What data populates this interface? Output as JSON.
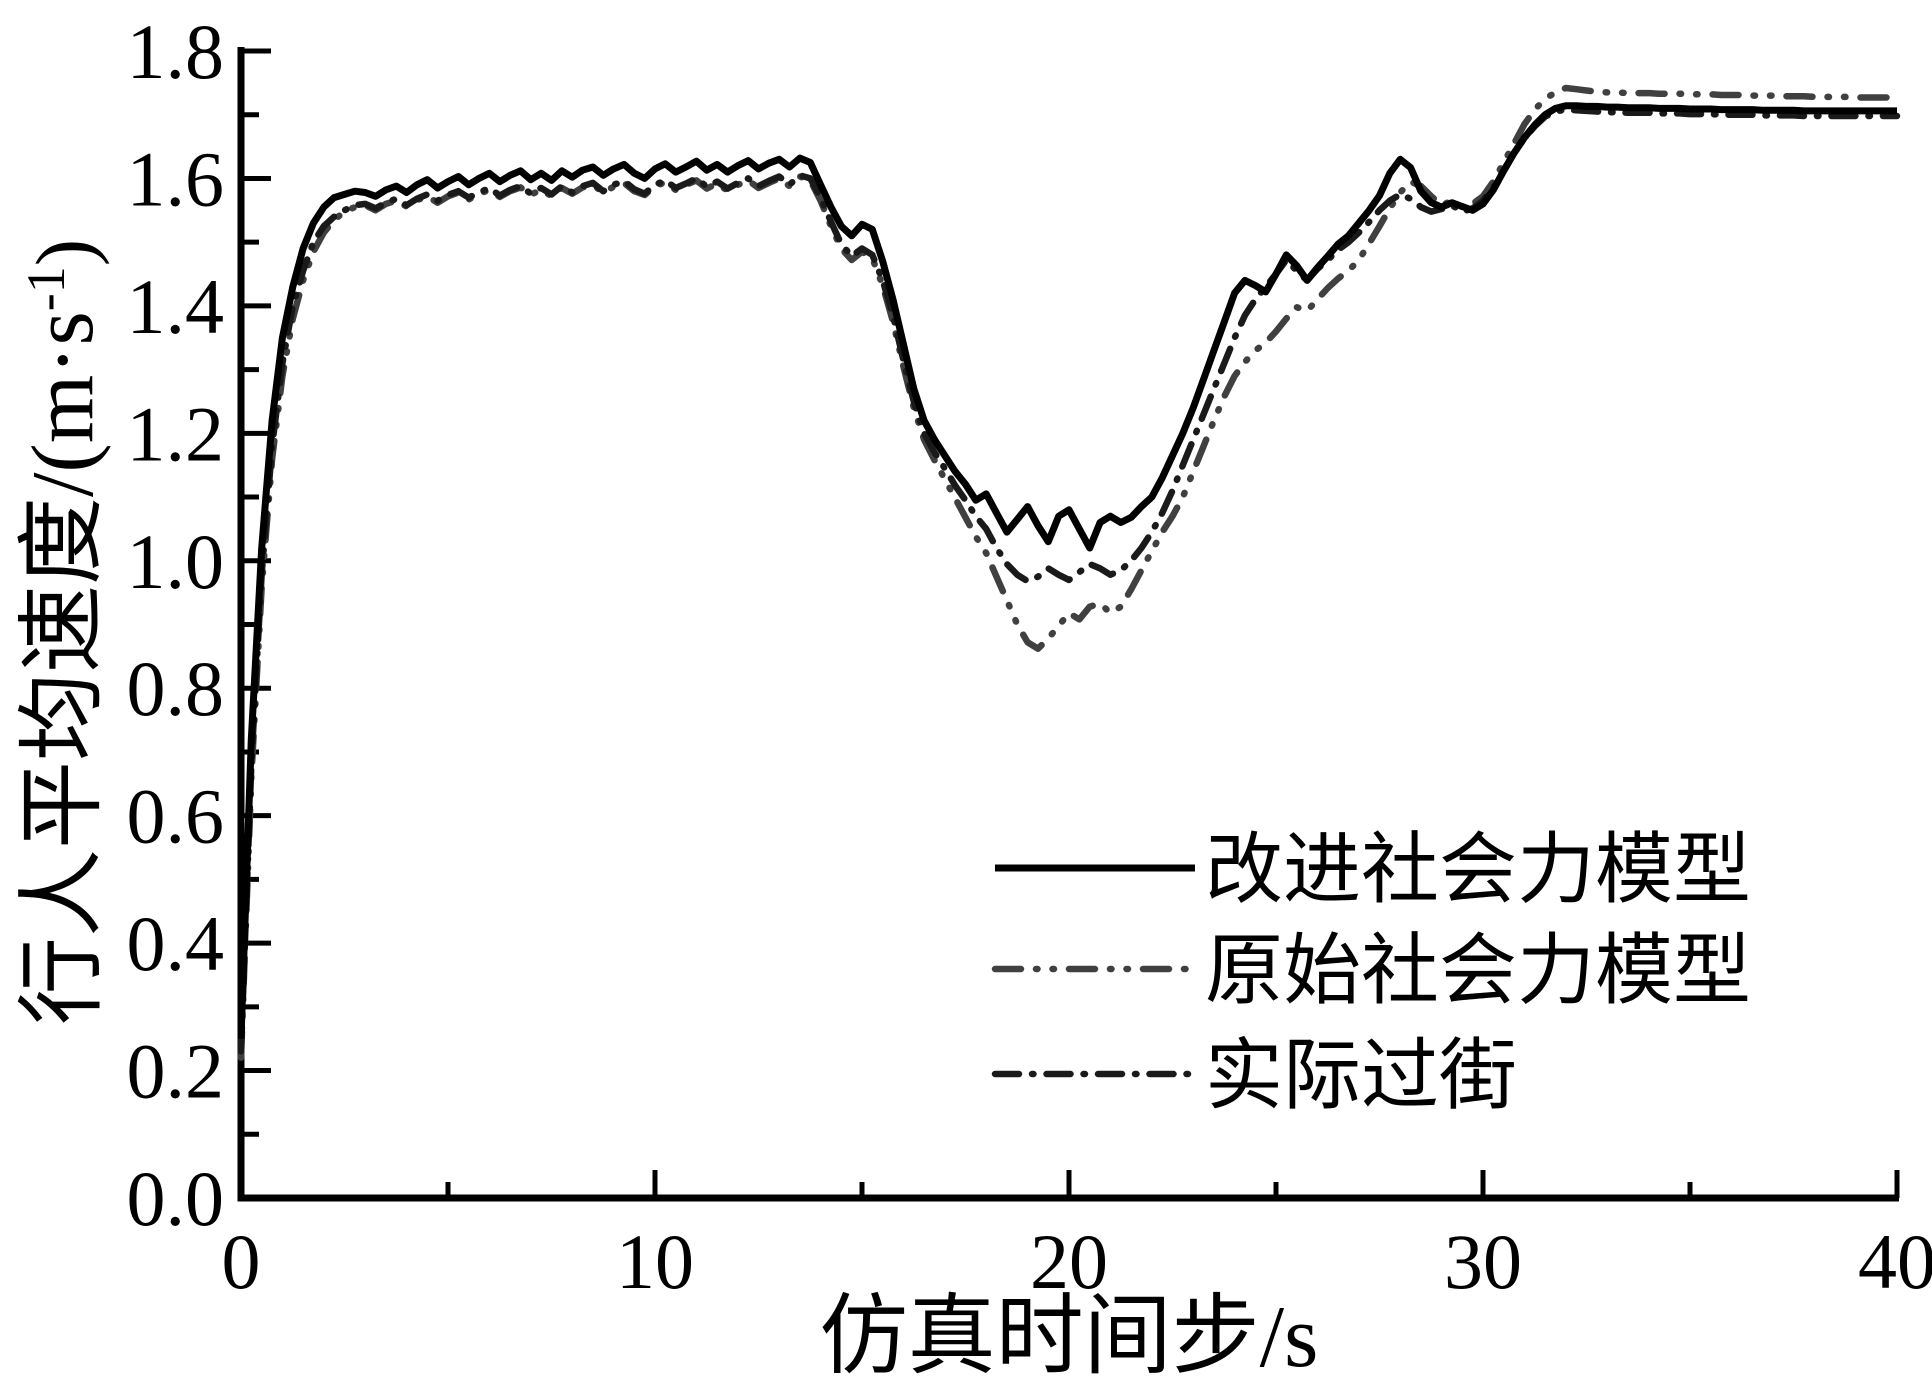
{
  "chart_data": {
    "type": "line",
    "title": "",
    "xlabel": "仿真时间步/s",
    "ylabel": "行人平均速度/(m·s⁻¹)",
    "ylabel_parts": {
      "main": "行人平均速度/(m·s",
      "sup": "-1",
      "close": ")"
    },
    "xlim": [
      0,
      40
    ],
    "ylim": [
      0,
      1.8
    ],
    "grid": false,
    "legend_position": "inside lower right",
    "x_major_ticks": [
      0,
      10,
      20,
      30,
      40
    ],
    "x_minor_ticks": [
      5,
      15,
      25,
      35
    ],
    "x_tick_labels": [
      "0",
      "10",
      "20",
      "30",
      "40"
    ],
    "y_major_ticks": [
      0.0,
      0.2,
      0.4,
      0.6,
      0.8,
      1.0,
      1.2,
      1.4,
      1.6,
      1.8
    ],
    "y_minor_ticks": [
      0.1,
      0.3,
      0.5,
      0.7,
      0.9,
      1.1,
      1.3,
      1.5,
      1.7
    ],
    "y_tick_labels": [
      "0.0",
      "0.2",
      "0.4",
      "0.6",
      "0.8",
      "1.0",
      "1.2",
      "1.4",
      "1.6",
      "1.8"
    ],
    "axis_color": "#000000",
    "x_start": 0,
    "x_step": 0.25,
    "series": [
      {
        "name": "改进社会力模型",
        "style": "solid",
        "color": "#000000",
        "values": [
          0.25,
          0.72,
          1.02,
          1.22,
          1.35,
          1.43,
          1.49,
          1.53,
          1.555,
          1.57,
          1.575,
          1.58,
          1.578,
          1.572,
          1.582,
          1.588,
          1.578,
          1.59,
          1.598,
          1.585,
          1.595,
          1.603,
          1.59,
          1.6,
          1.608,
          1.595,
          1.605,
          1.612,
          1.598,
          1.608,
          1.597,
          1.612,
          1.602,
          1.613,
          1.618,
          1.605,
          1.615,
          1.622,
          1.608,
          1.6,
          1.615,
          1.623,
          1.61,
          1.618,
          1.627,
          1.613,
          1.622,
          1.61,
          1.62,
          1.628,
          1.615,
          1.624,
          1.63,
          1.618,
          1.632,
          1.625,
          1.59,
          1.555,
          1.525,
          1.51,
          1.528,
          1.52,
          1.47,
          1.41,
          1.34,
          1.27,
          1.22,
          1.19,
          1.165,
          1.14,
          1.12,
          1.095,
          1.105,
          1.075,
          1.045,
          1.065,
          1.085,
          1.055,
          1.03,
          1.07,
          1.08,
          1.05,
          1.02,
          1.06,
          1.07,
          1.06,
          1.068,
          1.085,
          1.1,
          1.13,
          1.165,
          1.2,
          1.24,
          1.285,
          1.33,
          1.375,
          1.42,
          1.44,
          1.432,
          1.422,
          1.45,
          1.48,
          1.463,
          1.44,
          1.46,
          1.478,
          1.497,
          1.51,
          1.53,
          1.55,
          1.573,
          1.608,
          1.63,
          1.617,
          1.58,
          1.562,
          1.555,
          1.562,
          1.556,
          1.55,
          1.56,
          1.582,
          1.612,
          1.64,
          1.664,
          1.684,
          1.7,
          1.71,
          1.714,
          1.714,
          1.713,
          1.713,
          1.712,
          1.712,
          1.711,
          1.711,
          1.711,
          1.71,
          1.71,
          1.71,
          1.709,
          1.709,
          1.709,
          1.708,
          1.708,
          1.708,
          1.708,
          1.707,
          1.707,
          1.707,
          1.707,
          1.706,
          1.706,
          1.706,
          1.706,
          1.706,
          1.706,
          1.706,
          1.706,
          1.706,
          1.706
        ]
      },
      {
        "name": "原始社会力模型",
        "style": "dash-dot-dot",
        "color": "#404040",
        "values": [
          0.22,
          0.66,
          0.96,
          1.16,
          1.29,
          1.38,
          1.44,
          1.485,
          1.515,
          1.535,
          1.548,
          1.555,
          1.558,
          1.55,
          1.56,
          1.565,
          1.556,
          1.566,
          1.572,
          1.562,
          1.572,
          1.578,
          1.567,
          1.576,
          1.582,
          1.571,
          1.58,
          1.586,
          1.574,
          1.583,
          1.572,
          1.585,
          1.576,
          1.586,
          1.59,
          1.578,
          1.587,
          1.593,
          1.58,
          1.574,
          1.588,
          1.594,
          1.582,
          1.59,
          1.597,
          1.584,
          1.592,
          1.581,
          1.59,
          1.597,
          1.585,
          1.593,
          1.6,
          1.588,
          1.603,
          1.597,
          1.565,
          1.525,
          1.49,
          1.472,
          1.485,
          1.475,
          1.432,
          1.375,
          1.305,
          1.24,
          1.19,
          1.158,
          1.128,
          1.098,
          1.068,
          1.038,
          1.012,
          0.975,
          0.938,
          0.9,
          0.872,
          0.862,
          0.878,
          0.898,
          0.918,
          0.908,
          0.928,
          0.933,
          0.918,
          0.928,
          0.955,
          0.985,
          1.015,
          1.045,
          1.07,
          1.1,
          1.14,
          1.18,
          1.22,
          1.258,
          1.29,
          1.312,
          1.33,
          1.342,
          1.36,
          1.38,
          1.398,
          1.392,
          1.41,
          1.428,
          1.443,
          1.455,
          1.472,
          1.498,
          1.525,
          1.553,
          1.578,
          1.595,
          1.588,
          1.572,
          1.558,
          1.565,
          1.555,
          1.56,
          1.572,
          1.595,
          1.625,
          1.655,
          1.685,
          1.708,
          1.725,
          1.735,
          1.742,
          1.74,
          1.738,
          1.736,
          1.735,
          1.735,
          1.734,
          1.734,
          1.734,
          1.733,
          1.733,
          1.733,
          1.732,
          1.732,
          1.732,
          1.731,
          1.731,
          1.731,
          1.73,
          1.73,
          1.73,
          1.729,
          1.729,
          1.729,
          1.728,
          1.728,
          1.728,
          1.728,
          1.727,
          1.727,
          1.727,
          1.727,
          1.727
        ]
      },
      {
        "name": "实际过街",
        "style": "dash-dot",
        "color": "#1a1a1a",
        "values": [
          0.23,
          0.68,
          0.98,
          1.18,
          1.31,
          1.4,
          1.455,
          1.5,
          1.525,
          1.54,
          1.55,
          1.558,
          1.56,
          1.553,
          1.562,
          1.568,
          1.558,
          1.568,
          1.575,
          1.565,
          1.574,
          1.58,
          1.57,
          1.578,
          1.585,
          1.573,
          1.582,
          1.588,
          1.576,
          1.585,
          1.575,
          1.588,
          1.578,
          1.588,
          1.593,
          1.58,
          1.59,
          1.596,
          1.583,
          1.576,
          1.59,
          1.597,
          1.585,
          1.592,
          1.6,
          1.587,
          1.595,
          1.584,
          1.593,
          1.6,
          1.588,
          1.596,
          1.603,
          1.59,
          1.605,
          1.6,
          1.57,
          1.532,
          1.497,
          1.478,
          1.49,
          1.48,
          1.44,
          1.385,
          1.315,
          1.25,
          1.2,
          1.17,
          1.145,
          1.118,
          1.095,
          1.07,
          1.05,
          1.02,
          0.995,
          0.978,
          0.968,
          0.975,
          0.988,
          0.978,
          0.97,
          0.982,
          0.995,
          0.988,
          0.978,
          0.985,
          1.0,
          1.02,
          1.045,
          1.075,
          1.11,
          1.15,
          1.19,
          1.23,
          1.27,
          1.31,
          1.35,
          1.385,
          1.41,
          1.43,
          1.45,
          1.472,
          1.455,
          1.44,
          1.458,
          1.472,
          1.488,
          1.5,
          1.515,
          1.532,
          1.55,
          1.565,
          1.575,
          1.568,
          1.555,
          1.548,
          1.552,
          1.558,
          1.548,
          1.553,
          1.565,
          1.585,
          1.613,
          1.64,
          1.663,
          1.682,
          1.697,
          1.705,
          1.708,
          1.707,
          1.706,
          1.705,
          1.704,
          1.704,
          1.703,
          1.703,
          1.703,
          1.702,
          1.702,
          1.702,
          1.701,
          1.701,
          1.701,
          1.7,
          1.7,
          1.7,
          1.7,
          1.699,
          1.699,
          1.699,
          1.699,
          1.698,
          1.698,
          1.698,
          1.698,
          1.698,
          1.698,
          1.698,
          1.698,
          1.698,
          1.698
        ]
      }
    ]
  }
}
